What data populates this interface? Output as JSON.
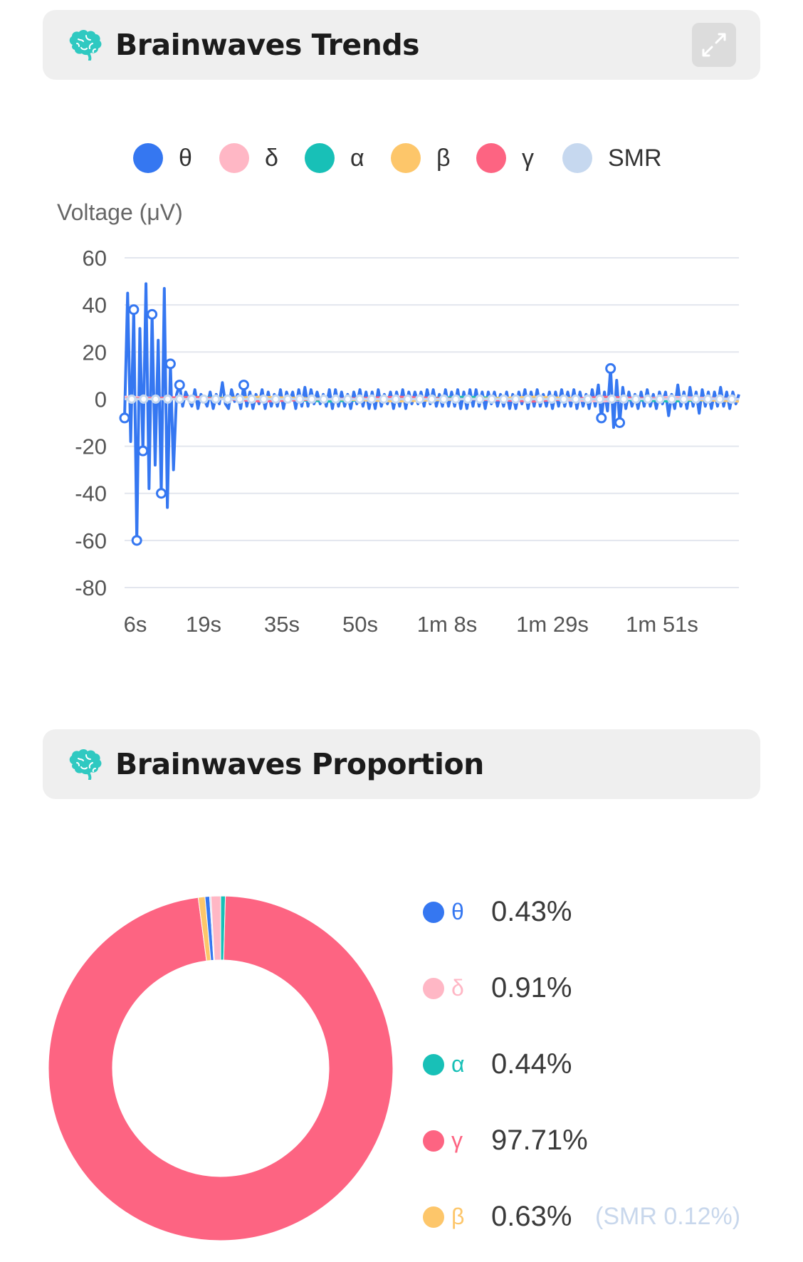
{
  "trends": {
    "title": "Brainwaves Trends",
    "expand_icon": "expand-icon",
    "brain_icon": "brain-icon"
  },
  "proportion": {
    "title": "Brainwaves Proportion",
    "brain_icon": "brain-icon",
    "legend": [
      {
        "symbol": "θ",
        "value": "0.43%",
        "color": "#3577f1"
      },
      {
        "symbol": "δ",
        "value": "0.91%",
        "color": "#ffb7c5"
      },
      {
        "symbol": "α",
        "value": "0.44%",
        "color": "#18c0b7"
      },
      {
        "symbol": "γ",
        "value": "97.71%",
        "color": "#fd6482"
      },
      {
        "symbol": "β",
        "value": "0.63%",
        "color": "#fdc66a",
        "note": "(SMR 0.12%)"
      }
    ]
  },
  "chart_data": [
    {
      "type": "line",
      "title": "",
      "ylabel": "Voltage (μV)",
      "xlabel": "",
      "ylim": [
        -80,
        60
      ],
      "yticks": [
        60,
        40,
        20,
        0,
        -20,
        -40,
        -60,
        -80
      ],
      "xticks": [
        "6s",
        "19s",
        "35s",
        "50s",
        "1m 8s",
        "1m 29s",
        "1m 51s"
      ],
      "grid": true,
      "legend_position": "top",
      "series": [
        {
          "name": "θ",
          "color": "#3577f1",
          "values": [
            -8,
            45,
            -18,
            38,
            -60,
            30,
            -22,
            49,
            -38,
            36,
            -28,
            25,
            -40,
            47,
            -46,
            15,
            -30,
            2,
            6,
            -3,
            3,
            0,
            -3,
            4,
            -4,
            2,
            0,
            -3,
            3,
            -4,
            2,
            -2,
            7,
            -2,
            -4,
            4,
            -1,
            2,
            -4,
            6,
            -3,
            3,
            -4,
            2,
            -2,
            4,
            -4,
            3,
            -3,
            2,
            -3,
            4,
            -4,
            3,
            -1,
            3,
            -4,
            4,
            -3,
            5,
            -3,
            4,
            -2,
            3,
            -2,
            2,
            -3,
            4,
            -4,
            4,
            -3,
            3,
            -3,
            2,
            -4,
            3,
            -2,
            4,
            -3,
            3,
            -4,
            3,
            -4,
            4,
            -3,
            2,
            -2,
            3,
            -4,
            3,
            -3,
            4,
            -4,
            3,
            -2,
            3,
            -2,
            3,
            -3,
            4,
            -2,
            4,
            -3,
            2,
            -3,
            4,
            -3,
            3,
            -3,
            4,
            -4,
            3,
            -4,
            4,
            -3,
            4,
            -3,
            3,
            -4,
            3,
            -2,
            3,
            -3,
            2,
            -3,
            3,
            -4,
            2,
            -4,
            3,
            -2,
            4,
            -4,
            3,
            -3,
            4,
            -3,
            2,
            -3,
            3,
            -4,
            3,
            -3,
            4,
            -3,
            3,
            -3,
            4,
            -4,
            3,
            -3,
            2,
            -4,
            4,
            -3,
            6,
            -8,
            3,
            -5,
            13,
            -12,
            8,
            -10,
            5,
            -4,
            3,
            -3,
            2,
            -4,
            3,
            -3,
            4,
            -3,
            2,
            -4,
            3,
            -2,
            3,
            -7,
            2,
            -4,
            6,
            -3,
            3,
            -4,
            5,
            -3,
            3,
            -6,
            4,
            -3,
            3,
            -4,
            3,
            -3,
            5,
            -3,
            3,
            -4,
            3,
            -2,
            2
          ]
        },
        {
          "name": "δ",
          "color": "#ffb7c5",
          "values": [
            1,
            0,
            1,
            -1,
            0,
            1,
            0,
            -1,
            1,
            0
          ]
        },
        {
          "name": "α",
          "color": "#18c0b7",
          "values": [
            0,
            1,
            0,
            -1,
            0,
            1,
            0,
            0,
            -1,
            0
          ]
        },
        {
          "name": "β",
          "color": "#fdc66a",
          "values": [
            0,
            0,
            1,
            0,
            -1,
            0,
            1,
            0,
            0,
            -1
          ]
        },
        {
          "name": "γ",
          "color": "#fd6482",
          "values": [
            0,
            1,
            -1,
            0,
            1,
            0,
            -1,
            1,
            0,
            0
          ]
        },
        {
          "name": "SMR",
          "color": "#c6d8ef",
          "values": [
            0,
            0,
            0,
            0,
            0,
            0,
            0,
            0,
            0,
            0
          ]
        }
      ]
    },
    {
      "type": "pie",
      "categories": [
        "θ",
        "δ",
        "α",
        "γ",
        "β",
        "SMR"
      ],
      "values": [
        0.43,
        0.91,
        0.44,
        97.71,
        0.63,
        0.12
      ],
      "colors": [
        "#3577f1",
        "#ffb7c5",
        "#18c0b7",
        "#fd6482",
        "#fdc66a",
        "#c6d8ef"
      ]
    }
  ]
}
